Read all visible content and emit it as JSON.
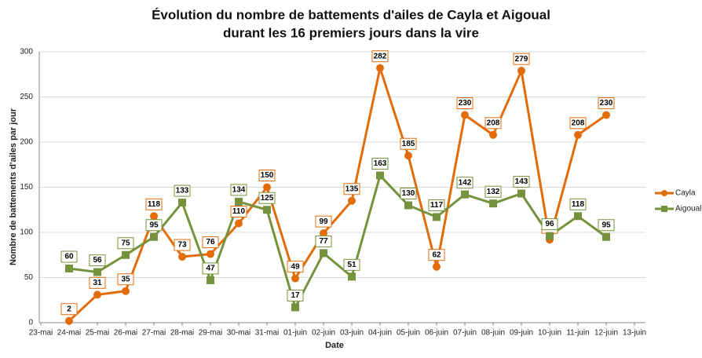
{
  "chart_data": {
    "type": "line",
    "title": "Évolution du nombre de battements d'ailes de Cayla et Aigoual",
    "subtitle": "durant les 16 premiers jours dans la vire",
    "x_label": "Date",
    "y_label": "Nombre de battements d'ailes par jour",
    "categories": [
      "23-mai",
      "24-mai",
      "25-mai",
      "26-mai",
      "27-mai",
      "28-mai",
      "29-mai",
      "30-mai",
      "31-mai",
      "01-juin",
      "02-juin",
      "03-juin",
      "04-juin",
      "05-juin",
      "06-juin",
      "07-juin",
      "08-juin",
      "09-juin",
      "10-juin",
      "11-juin",
      "12-juin",
      "13-juin"
    ],
    "series": [
      {
        "name": "Cayla",
        "color": "#e36c0a",
        "marker": "circle",
        "values": [
          null,
          2,
          31,
          35,
          118,
          73,
          76,
          110,
          150,
          49,
          99,
          135,
          282,
          185,
          62,
          230,
          208,
          279,
          92,
          208,
          230,
          null
        ]
      },
      {
        "name": "Aigoual",
        "color": "#76923c",
        "marker": "square",
        "values": [
          null,
          60,
          56,
          75,
          95,
          133,
          47,
          134,
          125,
          17,
          77,
          51,
          163,
          130,
          117,
          142,
          132,
          143,
          96,
          118,
          95,
          null
        ]
      }
    ],
    "ylim": [
      0,
      300
    ],
    "yticks": [
      0,
      50,
      100,
      150,
      200,
      250,
      300
    ],
    "grid": true,
    "legend": "right"
  }
}
